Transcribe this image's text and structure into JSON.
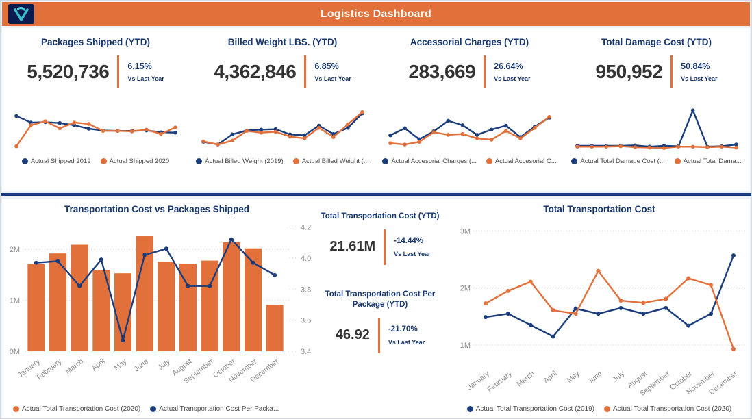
{
  "header": {
    "title": "Logistics Dashboard",
    "logo": "v-logo"
  },
  "colors": {
    "orange": "#e2703a",
    "navy": "#1b3d7c",
    "title_navy": "#17376e",
    "value_gray": "#333333",
    "axis_gray": "#8a8a8a",
    "legend_gray": "#4a4a4a",
    "divider_navy": "#16387d",
    "logo_bg": "#0c1b4d",
    "logo_glyph": "#35bdcb"
  },
  "kpi_cards": [
    {
      "title": "Packages Shipped (YTD)",
      "value": "5,520,736",
      "delta": "6.15%",
      "delta_caption": "Vs Last Year",
      "legend": [
        "Actual Shipped 2019",
        "Actual Shipped 2020"
      ]
    },
    {
      "title": "Billed Weight LBS. (YTD)",
      "value": "4,362,846",
      "delta": "6.85%",
      "delta_caption": "Vs Last Year",
      "legend": [
        "Actual Billed Weight (2019)",
        "Actual Billed Weight (..."
      ]
    },
    {
      "title": "Accessorial Charges (YTD)",
      "value": "283,669",
      "delta": "26.64%",
      "delta_caption": "Vs Last Year",
      "legend": [
        "Actual Accesorial Charges (...",
        "Actual Accesorial C..."
      ]
    },
    {
      "title": "Total Damage Cost (YTD)",
      "value": "950,952",
      "delta": "50.84%",
      "delta_caption": "Vs Last Year",
      "legend": [
        "Actual Total Damage Cost (...",
        "Actual Total Dama..."
      ]
    }
  ],
  "mid_kpis": [
    {
      "title": "Total Transportation Cost (YTD)",
      "value": "21.61M",
      "delta": "-14.44%",
      "delta_caption": "Vs Last Year"
    },
    {
      "title": "Total Transportation Cost Per Package (YTD)",
      "value": "46.92",
      "delta": "-21.70%",
      "delta_caption": "Vs Last Year"
    }
  ],
  "chart_data": [
    {
      "id": "spark-packages-shipped",
      "type": "line",
      "title": "Packages Shipped (YTD) trend",
      "note": "sparkline, 12 monthly points, axes hidden, values are relative heights 0-100",
      "series": [
        {
          "name": "Actual Shipped 2019",
          "color": "navy",
          "values_pct": [
            79,
            64,
            65,
            63,
            58,
            50,
            46,
            45,
            45,
            46,
            42,
            41
          ]
        },
        {
          "name": "Actual Shipped 2020",
          "color": "orange",
          "values_pct": [
            10,
            58,
            67,
            51,
            64,
            61,
            45,
            45,
            44,
            48,
            38,
            53
          ]
        }
      ]
    },
    {
      "id": "spark-billed-weight",
      "type": "line",
      "title": "Billed Weight LBS. (YTD) trend",
      "note": "sparkline, 12 monthly points, axes hidden, values are relative heights 0-100",
      "series": [
        {
          "name": "Actual Billed Weight (2019)",
          "color": "navy",
          "values_pct": [
            20,
            14,
            37,
            46,
            48,
            49,
            37,
            35,
            57,
            38,
            52,
            85
          ]
        },
        {
          "name": "Actual Billed Weight (...",
          "color": "orange",
          "values_pct": [
            21,
            14,
            23,
            45,
            41,
            43,
            32,
            28,
            52,
            31,
            60,
            88
          ]
        }
      ]
    },
    {
      "id": "spark-accessorial-charges",
      "type": "line",
      "title": "Accessorial Charges (YTD) trend",
      "note": "sparkline, 12 monthly points, axes hidden, values are relative heights 0-100",
      "series": [
        {
          "name": "Actual Accesorial Charges (...",
          "color": "navy",
          "values_pct": [
            35,
            51,
            26,
            44,
            68,
            58,
            36,
            48,
            57,
            31,
            55,
            75
          ]
        },
        {
          "name": "Actual Accesorial C...",
          "color": "orange",
          "values_pct": [
            17,
            14,
            20,
            42,
            36,
            38,
            28,
            25,
            45,
            28,
            52,
            77
          ]
        }
      ]
    },
    {
      "id": "spark-total-damage-cost",
      "type": "line",
      "title": "Total Damage Cost (YTD) trend",
      "note": "sparkline, 12 monthly points, axes hidden, values are relative heights 0-100",
      "series": [
        {
          "name": "Actual Total Damage Cost (...",
          "color": "navy",
          "values_pct": [
            11,
            11,
            11,
            11,
            12,
            9,
            11,
            10,
            92,
            9,
            10,
            14
          ]
        },
        {
          "name": "Actual Total Dama...",
          "color": "orange",
          "values_pct": [
            9,
            9,
            9,
            10,
            8,
            7,
            6,
            9,
            9,
            8,
            9,
            7
          ]
        }
      ]
    },
    {
      "id": "transportation-cost-vs-packages",
      "type": "combo",
      "title": "Transportation Cost vs Packages Shipped",
      "categories": [
        "January",
        "February",
        "March",
        "April",
        "May",
        "June",
        "July",
        "August",
        "September",
        "October",
        "November",
        "December"
      ],
      "bar_series": {
        "name": "Actual Total Transportation Cost (2020)",
        "color": "orange",
        "axis": "left",
        "unit": "M",
        "values": [
          1.71,
          1.92,
          2.09,
          1.59,
          1.53,
          2.27,
          1.76,
          1.72,
          1.78,
          2.14,
          2.02,
          0.91
        ]
      },
      "line_series": {
        "name": "Actual Transportation Cost Per Packa...",
        "color": "navy",
        "axis": "right",
        "values": [
          3.97,
          3.98,
          3.82,
          3.99,
          3.47,
          4.02,
          4.06,
          3.82,
          3.82,
          4.12,
          3.97,
          3.89
        ]
      },
      "left_axis": {
        "tick_labels": [
          "0M",
          "1M",
          "2M"
        ],
        "tick_values": [
          0,
          1,
          2
        ],
        "min": 0,
        "max": 2.5
      },
      "right_axis": {
        "tick_labels": [
          "3.4",
          "3.6",
          "3.8",
          "4.0",
          "4.2"
        ],
        "tick_values": [
          3.4,
          3.6,
          3.8,
          4.0,
          4.2
        ],
        "min": 3.4,
        "max": 4.22
      },
      "grid": "dotted horizontal",
      "legend_position": "bottom-left"
    },
    {
      "id": "total-transportation-cost",
      "type": "line",
      "title": "Total Transportation Cost",
      "categories": [
        "January",
        "February",
        "March",
        "April",
        "May",
        "June",
        "July",
        "August",
        "September",
        "October",
        "November",
        "December"
      ],
      "series": [
        {
          "name": "Actual Total Transportation Cost (2019)",
          "color": "navy",
          "unit": "M",
          "values": [
            1.49,
            1.55,
            1.35,
            1.15,
            1.64,
            1.55,
            1.65,
            1.55,
            1.65,
            1.34,
            1.55,
            2.57
          ]
        },
        {
          "name": "Actual Total Transportation Cost (2020)",
          "color": "orange",
          "unit": "M",
          "values": [
            1.73,
            1.95,
            2.11,
            1.61,
            1.55,
            2.3,
            1.78,
            1.74,
            1.81,
            2.17,
            2.05,
            0.93
          ]
        }
      ],
      "y_axis": {
        "tick_labels": [
          "1M",
          "2M",
          "3M"
        ],
        "tick_values": [
          1,
          2,
          3
        ],
        "min": 0.7,
        "max": 3.1
      },
      "grid": "dotted horizontal",
      "legend_position": "bottom-center"
    }
  ]
}
